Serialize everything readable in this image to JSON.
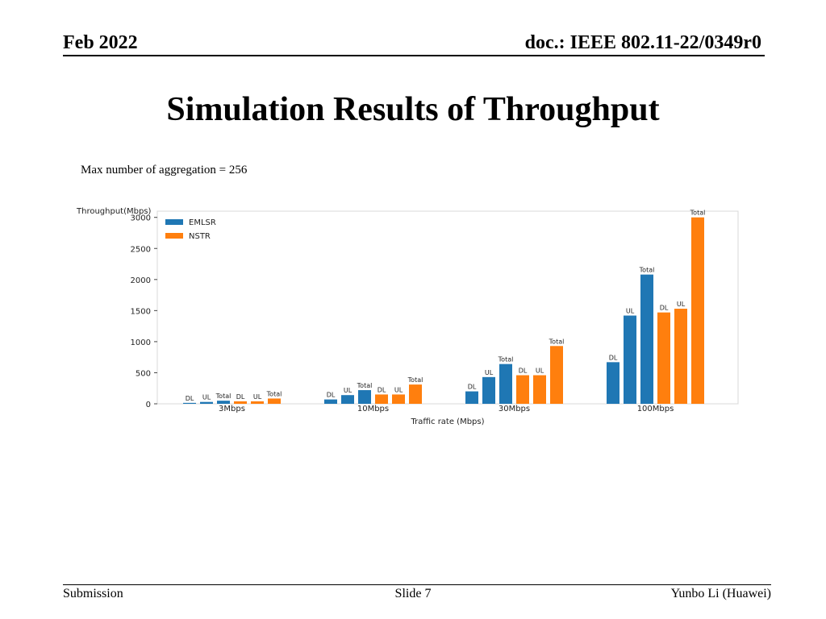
{
  "header": {
    "date": "Feb 2022",
    "doc": "doc.: IEEE 802.11-22/0349r0"
  },
  "slide": {
    "title": "Simulation Results of Throughput",
    "note": "Max number of aggregation = 256"
  },
  "footer": {
    "left": "Submission",
    "center": "Slide 7",
    "right": "Yunbo Li (Huawei)"
  },
  "chart_data": {
    "type": "bar",
    "ylabel": "Throughput(Mbps)",
    "xlabel": "Traffic rate (Mbps)",
    "ylim": [
      0,
      3100
    ],
    "yticks": [
      0,
      500,
      1000,
      1500,
      2000,
      2500,
      3000
    ],
    "grid": false,
    "legend_position": "top-left",
    "groups": [
      "3Mbps",
      "10Mbps",
      "30Mbps",
      "100Mbps"
    ],
    "subcategories": [
      "DL",
      "UL",
      "Total"
    ],
    "series": [
      {
        "name": "EMLSR",
        "color": "#1f77b4",
        "values": [
          [
            15,
            30,
            50
          ],
          [
            70,
            140,
            220
          ],
          [
            200,
            430,
            640
          ],
          [
            670,
            1420,
            2080
          ]
        ]
      },
      {
        "name": "NSTR",
        "color": "#ff7f0e",
        "values": [
          [
            40,
            40,
            85
          ],
          [
            150,
            150,
            310
          ],
          [
            460,
            460,
            930
          ],
          [
            1470,
            1530,
            3000
          ]
        ]
      }
    ]
  }
}
